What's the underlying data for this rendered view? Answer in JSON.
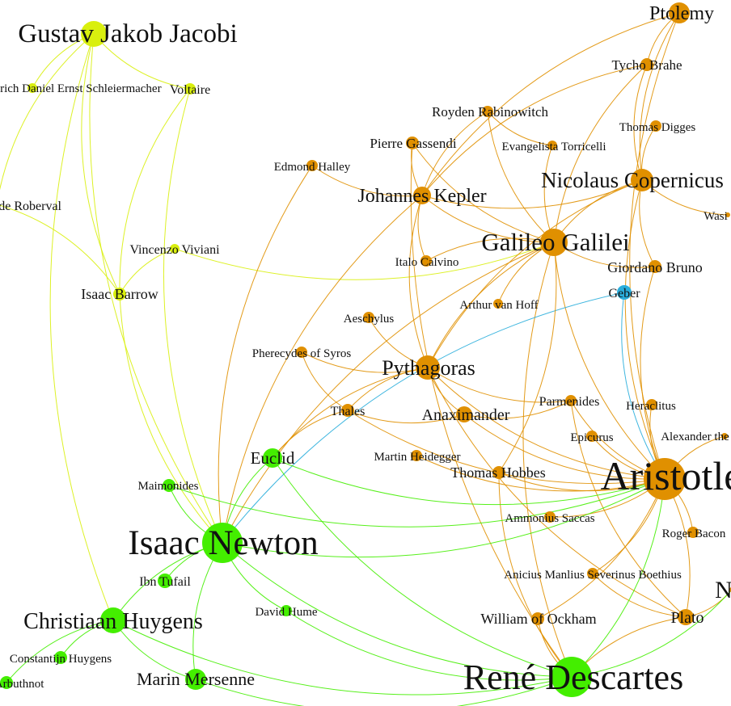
{
  "graph": {
    "colors": {
      "yellow": "#d9ef0e",
      "orange": "#e09000",
      "green": "#44ee00",
      "blue": "#2aaedc"
    },
    "nodes": [
      {
        "id": "jacobi",
        "label": "Gustav Jakob Jacobi",
        "group": "yellow"
      },
      {
        "id": "schleiermacher",
        "label": "Friedrich Daniel Ernst Schleiermacher",
        "group": "yellow"
      },
      {
        "id": "voltaire",
        "label": "Voltaire",
        "group": "yellow"
      },
      {
        "id": "roberval",
        "label": "Gilles de Roberval",
        "group": "yellow"
      },
      {
        "id": "viviani",
        "label": "Vincenzo Viviani",
        "group": "yellow"
      },
      {
        "id": "barrow",
        "label": "Isaac Barrow",
        "group": "yellow"
      },
      {
        "id": "ptolemy",
        "label": "Ptolemy",
        "group": "orange"
      },
      {
        "id": "tycho",
        "label": "Tycho Brahe",
        "group": "orange"
      },
      {
        "id": "rabinowitch",
        "label": "Royden Rabinowitch",
        "group": "orange"
      },
      {
        "id": "digges",
        "label": "Thomas Digges",
        "group": "orange"
      },
      {
        "id": "gassendi",
        "label": "Pierre Gassendi",
        "group": "orange"
      },
      {
        "id": "torricelli",
        "label": "Evangelista Torricelli",
        "group": "orange"
      },
      {
        "id": "halley",
        "label": "Edmond Halley",
        "group": "orange"
      },
      {
        "id": "kepler",
        "label": "Johannes Kepler",
        "group": "orange"
      },
      {
        "id": "copernicus",
        "label": "Nicolaus Copernicus",
        "group": "orange"
      },
      {
        "id": "wasi",
        "label": "Wasi",
        "group": "orange"
      },
      {
        "id": "galileo",
        "label": "Galileo Galilei",
        "group": "orange"
      },
      {
        "id": "calvino",
        "label": "Italo Calvino",
        "group": "orange"
      },
      {
        "id": "bruno",
        "label": "Giordano Bruno",
        "group": "orange"
      },
      {
        "id": "geber",
        "label": "Geber",
        "group": "blue"
      },
      {
        "id": "hoff",
        "label": "Arthur van Hoff",
        "group": "orange"
      },
      {
        "id": "aeschylus",
        "label": "Aeschylus",
        "group": "orange"
      },
      {
        "id": "pherecydes",
        "label": "Pherecydes of Syros",
        "group": "orange"
      },
      {
        "id": "pythagoras",
        "label": "Pythagoras",
        "group": "orange"
      },
      {
        "id": "parmenides",
        "label": "Parmenides",
        "group": "orange"
      },
      {
        "id": "heraclitus",
        "label": "Heraclitus",
        "group": "orange"
      },
      {
        "id": "thales",
        "label": "Thales",
        "group": "orange"
      },
      {
        "id": "anaximander",
        "label": "Anaximander",
        "group": "orange"
      },
      {
        "id": "alexander",
        "label": "Alexander the Great",
        "group": "orange"
      },
      {
        "id": "epicurus",
        "label": "Epicurus",
        "group": "orange"
      },
      {
        "id": "euclid",
        "label": "Euclid",
        "group": "green"
      },
      {
        "id": "heidegger",
        "label": "Martin Heidegger",
        "group": "orange"
      },
      {
        "id": "hobbes",
        "label": "Thomas Hobbes",
        "group": "orange"
      },
      {
        "id": "aristotle",
        "label": "Aristotle",
        "group": "orange"
      },
      {
        "id": "maimonides",
        "label": "Maimonides",
        "group": "green"
      },
      {
        "id": "saccas",
        "label": "Ammonius Saccas",
        "group": "orange"
      },
      {
        "id": "bacon",
        "label": "Roger Bacon",
        "group": "orange"
      },
      {
        "id": "newton",
        "label": "Isaac Newton",
        "group": "green"
      },
      {
        "id": "tufail",
        "label": "Ibn Tufail",
        "group": "green"
      },
      {
        "id": "boethius",
        "label": "Anicius Manlius Severinus Boethius",
        "group": "orange"
      },
      {
        "id": "hume",
        "label": "David Hume",
        "group": "green"
      },
      {
        "id": "huygens",
        "label": "Christiaan Huygens",
        "group": "green"
      },
      {
        "id": "ockham",
        "label": "William of Ockham",
        "group": "orange"
      },
      {
        "id": "plato",
        "label": "Plato",
        "group": "orange"
      },
      {
        "id": "n_right",
        "label": "N",
        "group": "orange"
      },
      {
        "id": "c_huygens",
        "label": "Constantijn Huygens",
        "group": "green"
      },
      {
        "id": "arbuthnot",
        "label": "John Arbuthnot",
        "group": "green"
      },
      {
        "id": "mersenne",
        "label": "Marin Mersenne",
        "group": "green"
      },
      {
        "id": "descartes",
        "label": "René Descartes",
        "group": "green"
      }
    ],
    "edges": [
      [
        "jacobi",
        "voltaire"
      ],
      [
        "jacobi",
        "schleiermacher"
      ],
      [
        "jacobi",
        "barrow"
      ],
      [
        "jacobi",
        "newton"
      ],
      [
        "jacobi",
        "huygens"
      ],
      [
        "jacobi",
        "roberval"
      ],
      [
        "voltaire",
        "newton"
      ],
      [
        "voltaire",
        "barrow"
      ],
      [
        "viviani",
        "galileo"
      ],
      [
        "viviani",
        "barrow"
      ],
      [
        "barrow",
        "newton"
      ],
      [
        "barrow",
        "roberval"
      ],
      [
        "ptolemy",
        "tycho"
      ],
      [
        "ptolemy",
        "copernicus"
      ],
      [
        "ptolemy",
        "aristotle"
      ],
      [
        "ptolemy",
        "kepler"
      ],
      [
        "tycho",
        "kepler"
      ],
      [
        "tycho",
        "galileo"
      ],
      [
        "tycho",
        "copernicus"
      ],
      [
        "digges",
        "copernicus"
      ],
      [
        "rabinowitch",
        "kepler"
      ],
      [
        "rabinowitch",
        "galileo"
      ],
      [
        "rabinowitch",
        "torricelli"
      ],
      [
        "gassendi",
        "kepler"
      ],
      [
        "gassendi",
        "galileo"
      ],
      [
        "gassendi",
        "descartes"
      ],
      [
        "torricelli",
        "galileo"
      ],
      [
        "halley",
        "kepler"
      ],
      [
        "halley",
        "newton"
      ],
      [
        "kepler",
        "galileo"
      ],
      [
        "kepler",
        "copernicus"
      ],
      [
        "kepler",
        "pythagoras"
      ],
      [
        "kepler",
        "newton"
      ],
      [
        "kepler",
        "calvino"
      ],
      [
        "copernicus",
        "galileo"
      ],
      [
        "copernicus",
        "bruno"
      ],
      [
        "copernicus",
        "aristotle"
      ],
      [
        "copernicus",
        "pythagoras"
      ],
      [
        "copernicus",
        "wasi"
      ],
      [
        "galileo",
        "bruno"
      ],
      [
        "galileo",
        "aristotle"
      ],
      [
        "galileo",
        "hoff"
      ],
      [
        "galileo",
        "pythagoras"
      ],
      [
        "galileo",
        "newton"
      ],
      [
        "galileo",
        "calvino"
      ],
      [
        "galileo",
        "descartes"
      ],
      [
        "bruno",
        "aristotle"
      ],
      [
        "geber",
        "aristotle"
      ],
      [
        "geber",
        "newton"
      ],
      [
        "aeschylus",
        "pythagoras"
      ],
      [
        "pherecydes",
        "pythagoras"
      ],
      [
        "pherecydes",
        "thales"
      ],
      [
        "pythagoras",
        "anaximander"
      ],
      [
        "pythagoras",
        "thales"
      ],
      [
        "pythagoras",
        "parmenides"
      ],
      [
        "pythagoras",
        "aristotle"
      ],
      [
        "pythagoras",
        "euclid"
      ],
      [
        "pythagoras",
        "plato"
      ],
      [
        "thales",
        "anaximander"
      ],
      [
        "thales",
        "euclid"
      ],
      [
        "thales",
        "aristotle"
      ],
      [
        "anaximander",
        "aristotle"
      ],
      [
        "anaximander",
        "parmenides"
      ],
      [
        "parmenides",
        "aristotle"
      ],
      [
        "parmenides",
        "plato"
      ],
      [
        "heraclitus",
        "aristotle"
      ],
      [
        "epicurus",
        "aristotle"
      ],
      [
        "alexander",
        "aristotle"
      ],
      [
        "heidegger",
        "aristotle"
      ],
      [
        "hobbes",
        "descartes"
      ],
      [
        "hobbes",
        "aristotle"
      ],
      [
        "hobbes",
        "galileo"
      ],
      [
        "euclid",
        "newton"
      ],
      [
        "euclid",
        "descartes"
      ],
      [
        "euclid",
        "aristotle"
      ],
      [
        "maimonides",
        "newton"
      ],
      [
        "maimonides",
        "aristotle"
      ],
      [
        "saccas",
        "aristotle"
      ],
      [
        "bacon",
        "aristotle"
      ],
      [
        "boethius",
        "aristotle"
      ],
      [
        "boethius",
        "plato"
      ],
      [
        "ockham",
        "aristotle"
      ],
      [
        "ockham",
        "descartes"
      ],
      [
        "plato",
        "aristotle"
      ],
      [
        "plato",
        "descartes"
      ],
      [
        "plato",
        "n_right"
      ],
      [
        "newton",
        "huygens"
      ],
      [
        "newton",
        "tufail"
      ],
      [
        "newton",
        "hume"
      ],
      [
        "newton",
        "descartes"
      ],
      [
        "newton",
        "mersenne"
      ],
      [
        "newton",
        "aristotle"
      ],
      [
        "huygens",
        "c_huygens"
      ],
      [
        "huygens",
        "arbuthnot"
      ],
      [
        "huygens",
        "descartes"
      ],
      [
        "huygens",
        "mersenne"
      ],
      [
        "mersenne",
        "descartes"
      ],
      [
        "hume",
        "descartes"
      ],
      [
        "descartes",
        "aristotle"
      ],
      [
        "descartes",
        "n_right"
      ]
    ]
  }
}
